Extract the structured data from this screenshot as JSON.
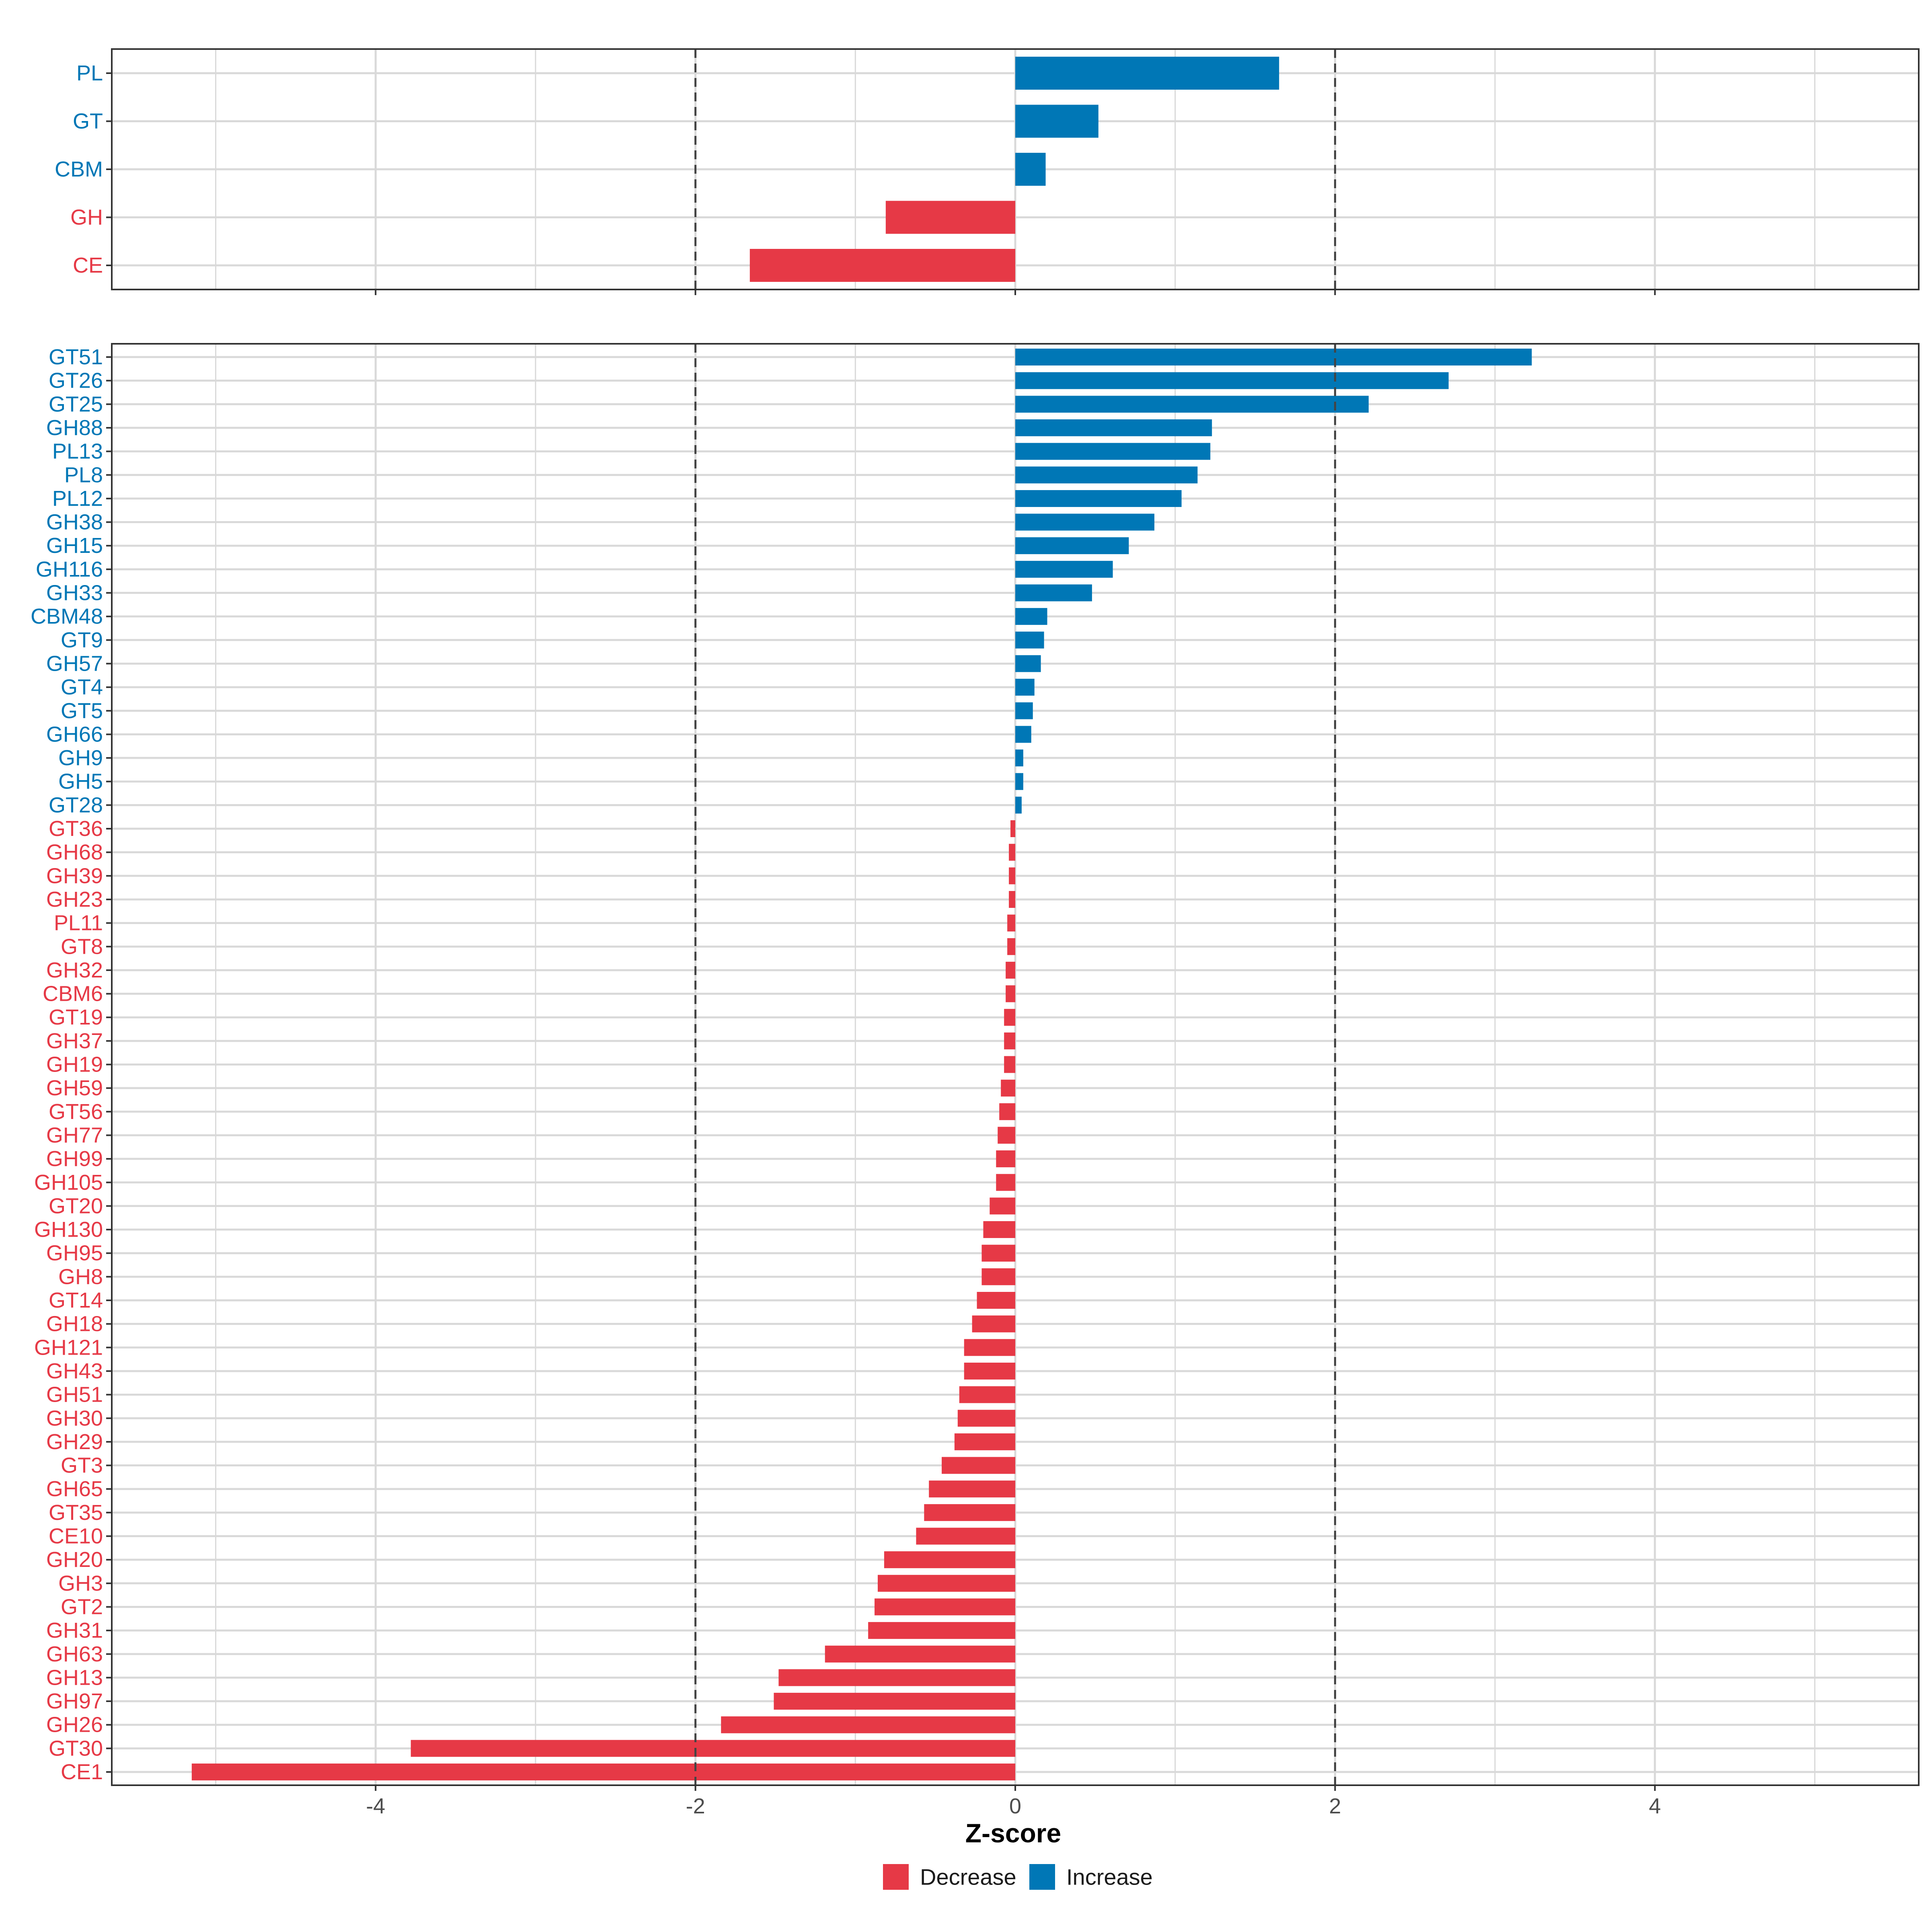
{
  "chart_data": [
    {
      "type": "bar",
      "orientation": "horizontal",
      "panel": "top",
      "categories": [
        "PL",
        "GT",
        "CBM",
        "GH",
        "CE"
      ],
      "values": [
        1.65,
        0.52,
        0.19,
        -0.81,
        -1.66
      ],
      "xlim": [
        -5.65,
        5.65
      ],
      "xticks": [
        -4,
        -2,
        0,
        2,
        4
      ],
      "reference_lines": [
        -2,
        2
      ],
      "grid": true
    },
    {
      "type": "bar",
      "orientation": "horizontal",
      "panel": "bottom",
      "categories": [
        "GT51",
        "GT26",
        "GT25",
        "GH88",
        "PL13",
        "PL8",
        "PL12",
        "GH38",
        "GH15",
        "GH116",
        "GH33",
        "CBM48",
        "GT9",
        "GH57",
        "GT4",
        "GT5",
        "GH66",
        "GH9",
        "GH5",
        "GT28",
        "GT36",
        "GH68",
        "GH39",
        "GH23",
        "PL11",
        "GT8",
        "GH32",
        "CBM6",
        "GT19",
        "GH37",
        "GH19",
        "GH59",
        "GT56",
        "GH77",
        "GH99",
        "GH105",
        "GT20",
        "GH130",
        "GH95",
        "GH8",
        "GT14",
        "GH18",
        "GH121",
        "GH43",
        "GH51",
        "GH30",
        "GH29",
        "GT3",
        "GH65",
        "GT35",
        "CE10",
        "GH20",
        "GH3",
        "GT2",
        "GH31",
        "GH63",
        "GH13",
        "GH97",
        "GH26",
        "GT30",
        "CE1"
      ],
      "values": [
        3.23,
        2.71,
        2.21,
        1.23,
        1.22,
        1.14,
        1.04,
        0.87,
        0.71,
        0.61,
        0.48,
        0.2,
        0.18,
        0.16,
        0.12,
        0.11,
        0.1,
        0.05,
        0.05,
        0.04,
        -0.03,
        -0.04,
        -0.04,
        -0.04,
        -0.05,
        -0.05,
        -0.06,
        -0.06,
        -0.07,
        -0.07,
        -0.07,
        -0.09,
        -0.1,
        -0.11,
        -0.12,
        -0.12,
        -0.16,
        -0.2,
        -0.21,
        -0.21,
        -0.24,
        -0.27,
        -0.32,
        -0.32,
        -0.35,
        -0.36,
        -0.38,
        -0.46,
        -0.54,
        -0.57,
        -0.62,
        -0.82,
        -0.86,
        -0.88,
        -0.92,
        -1.19,
        -1.48,
        -1.51,
        -1.84,
        -3.78,
        -5.15
      ],
      "xlim": [
        -5.65,
        5.65
      ],
      "xticks": [
        -4,
        -2,
        0,
        2,
        4
      ],
      "reference_lines": [
        -2,
        2
      ],
      "grid": true,
      "xlabel": "Z-score"
    }
  ],
  "legend": {
    "items": [
      {
        "label": "Decrease",
        "color": "#E63946"
      },
      {
        "label": "Increase",
        "color": "#0077B6"
      }
    ]
  },
  "colors": {
    "decrease": "#E63946",
    "increase": "#0077B6",
    "grid": "#D9D9D9",
    "border": "#333333",
    "reference_line": "#444444"
  }
}
